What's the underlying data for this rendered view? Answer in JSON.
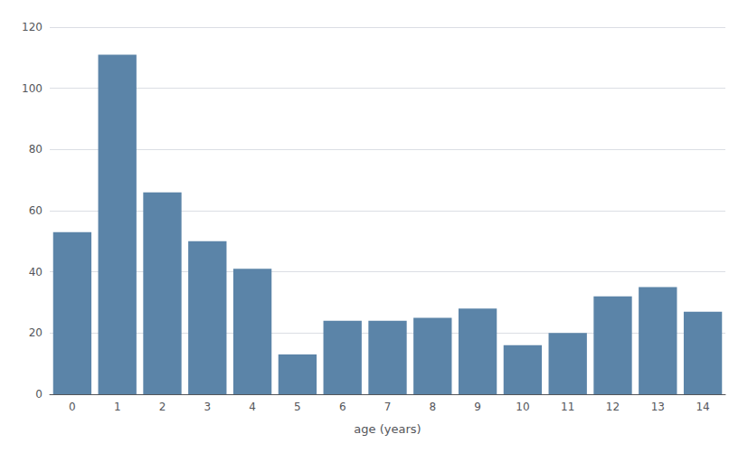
{
  "chart_data": {
    "type": "bar",
    "xlabel": "age (years)",
    "categories": [
      "0",
      "1",
      "2",
      "3",
      "4",
      "5",
      "6",
      "7",
      "8",
      "9",
      "10",
      "11",
      "12",
      "13",
      "14"
    ],
    "values": [
      53,
      111,
      66,
      50,
      41,
      13,
      24,
      24,
      25,
      28,
      16,
      20,
      32,
      35,
      27
    ],
    "color": "#5b84a8",
    "ylim": [
      0,
      120
    ],
    "yticks": [
      0,
      20,
      40,
      60,
      80,
      100,
      120
    ],
    "grid": true
  }
}
